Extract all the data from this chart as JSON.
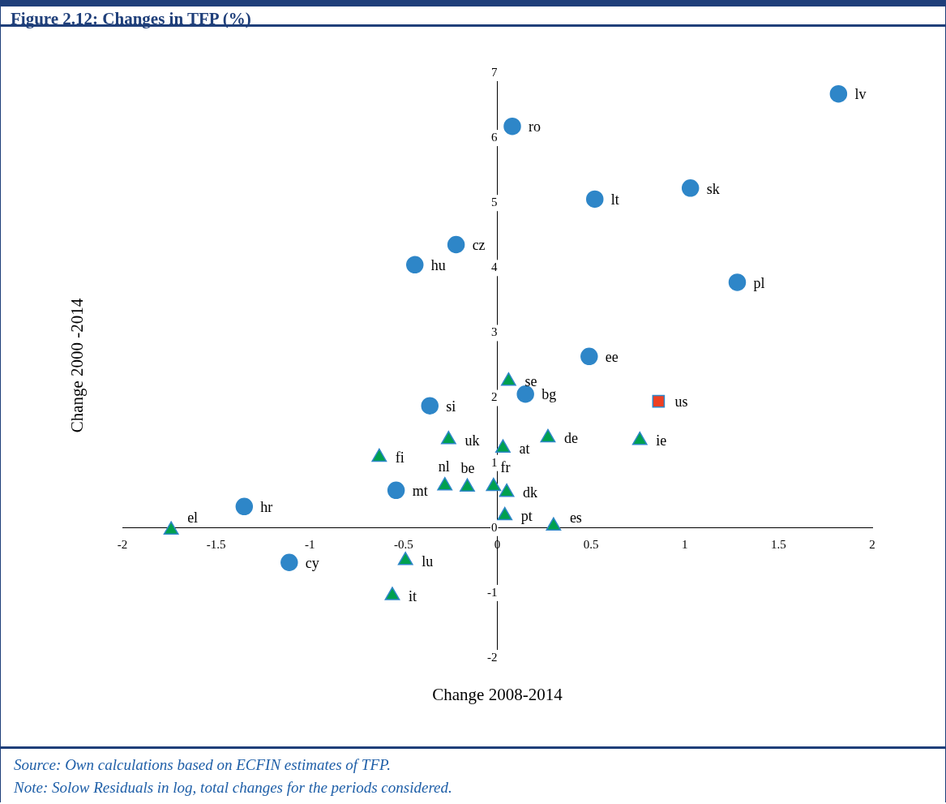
{
  "chart_data": {
    "type": "scatter",
    "title": "Figure 2.12: Changes in TFP (%)",
    "xlabel": "Change 2008-2014",
    "ylabel": "Change 2000 -2014",
    "xlim": [
      -2,
      2
    ],
    "xticks": [
      -2,
      -1.5,
      -1,
      -0.5,
      0,
      0.5,
      1,
      1.5,
      2
    ],
    "ylim": [
      -2,
      7
    ],
    "yticks": [
      -2,
      -1,
      0,
      1,
      2,
      3,
      4,
      5,
      6,
      7
    ],
    "grid": false,
    "legend": false,
    "series": [
      {
        "color": "#2e86c8",
        "marker": "circle",
        "x": [
          1.82,
          0.08,
          0.52,
          1.03,
          -0.22,
          -0.44,
          1.28,
          0.49,
          0.15,
          -0.36,
          -0.54,
          -1.35,
          -1.11
        ],
        "values": [
          6.68,
          6.18,
          5.06,
          5.23,
          4.36,
          4.05,
          3.78,
          2.64,
          2.06,
          1.88,
          0.58,
          0.33,
          -0.53
        ]
      },
      {
        "color": "#00a04f",
        "marker": "triangle",
        "x": [
          0.06,
          -0.26,
          0.27,
          0.76,
          0.03,
          -0.63,
          -0.28,
          -0.16,
          -0.02,
          0.05,
          0.04,
          0.3,
          -1.74,
          -0.49,
          -0.56
        ],
        "values": [
          2.26,
          1.36,
          1.39,
          1.35,
          1.23,
          1.09,
          0.65,
          0.63,
          0.64,
          0.55,
          0.19,
          0.03,
          -0.03,
          -0.5,
          -1.04
        ]
      },
      {
        "color": "#ee4023",
        "marker": "square",
        "x": [
          0.86
        ],
        "values": [
          1.95
        ]
      }
    ],
    "annotations": [
      {
        "text": "lv",
        "x": 1.82,
        "y": 6.68
      },
      {
        "text": "ro",
        "x": 0.08,
        "y": 6.18
      },
      {
        "text": "lt",
        "x": 0.52,
        "y": 5.06
      },
      {
        "text": "sk",
        "x": 1.03,
        "y": 5.23
      },
      {
        "text": "cz",
        "x": -0.22,
        "y": 4.36
      },
      {
        "text": "hu",
        "x": -0.44,
        "y": 4.05
      },
      {
        "text": "pl",
        "x": 1.28,
        "y": 3.78
      },
      {
        "text": "ee",
        "x": 0.49,
        "y": 2.64
      },
      {
        "text": "bg",
        "x": 0.15,
        "y": 2.06
      },
      {
        "text": "si",
        "x": -0.36,
        "y": 1.88
      },
      {
        "text": "mt",
        "x": -0.54,
        "y": 0.58
      },
      {
        "text": "hr",
        "x": -1.35,
        "y": 0.33
      },
      {
        "text": "cy",
        "x": -1.11,
        "y": -0.53
      },
      {
        "text": "se",
        "x": 0.06,
        "y": 2.26
      },
      {
        "text": "uk",
        "x": -0.26,
        "y": 1.36
      },
      {
        "text": "de",
        "x": 0.27,
        "y": 1.39
      },
      {
        "text": "ie",
        "x": 0.76,
        "y": 1.35
      },
      {
        "text": "at",
        "x": 0.03,
        "y": 1.23
      },
      {
        "text": "fi",
        "x": -0.63,
        "y": 1.09
      },
      {
        "text": "nl",
        "x": -0.28,
        "y": 0.65
      },
      {
        "text": "be",
        "x": -0.16,
        "y": 0.63
      },
      {
        "text": "fr",
        "x": -0.02,
        "y": 0.64
      },
      {
        "text": "dk",
        "x": 0.05,
        "y": 0.55
      },
      {
        "text": "pt",
        "x": 0.04,
        "y": 0.19
      },
      {
        "text": "es",
        "x": 0.3,
        "y": 0.03
      },
      {
        "text": "el",
        "x": -1.74,
        "y": -0.03
      },
      {
        "text": "lu",
        "x": -0.49,
        "y": -0.5
      },
      {
        "text": "it",
        "x": -0.56,
        "y": -1.04
      },
      {
        "text": "us",
        "x": 0.86,
        "y": 1.95
      },
      "Source: Own calculations based on ECFIN estimates of TFP.",
      "Note: Solow Residuals in log, total changes for the periods considered."
    ]
  }
}
